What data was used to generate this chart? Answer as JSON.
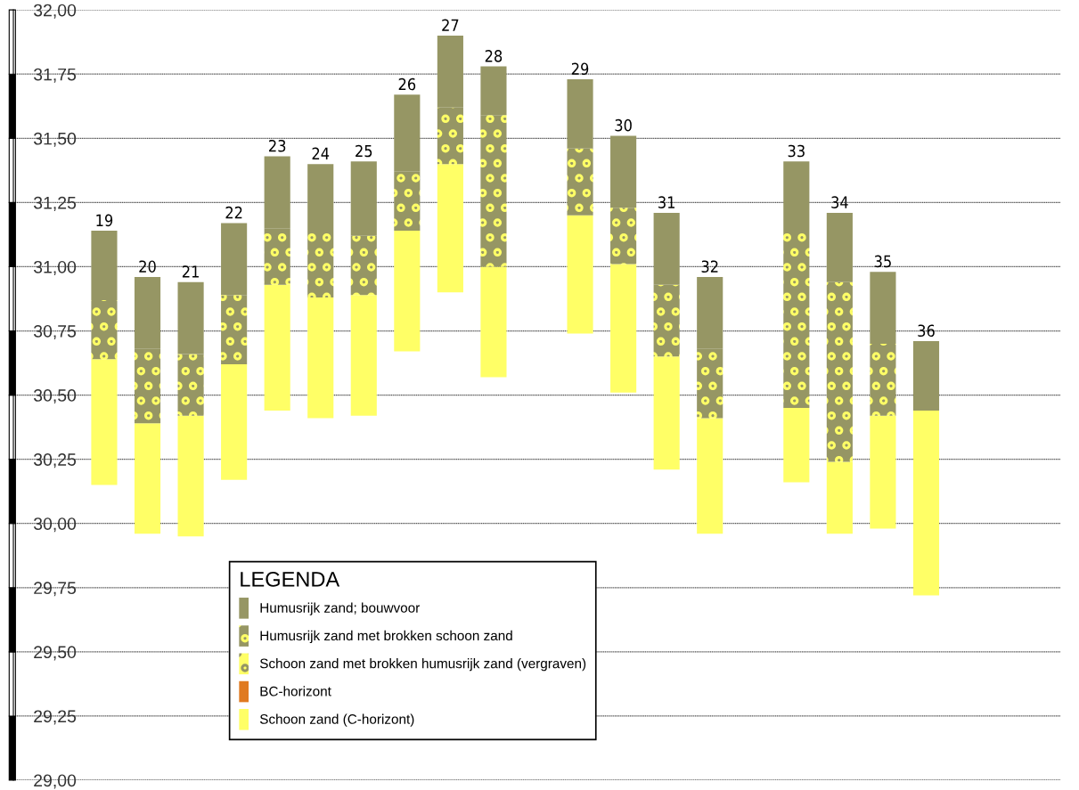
{
  "chart_data": {
    "type": "bar",
    "legend_title": "LEGENDA",
    "legend": "bottom left",
    "grid": "y",
    "categories": [
      "19",
      "20",
      "21",
      "22",
      "23",
      "24",
      "25",
      "26",
      "27",
      "28",
      null,
      "29",
      "30",
      "31",
      "32",
      null,
      "33",
      "34",
      "35",
      "36"
    ],
    "series": [
      {
        "name": "Schoon zand (C-horizont)",
        "color": "#ffff66",
        "base": [
          30.15,
          29.96,
          29.95,
          30.17,
          30.44,
          30.41,
          30.42,
          30.67,
          30.9,
          30.57,
          null,
          30.74,
          30.51,
          30.21,
          29.96,
          null,
          30.16,
          29.96,
          29.98,
          29.72
        ],
        "values": [
          0.49,
          0.43,
          0.47,
          0.45,
          0.49,
          0.47,
          0.47,
          0.47,
          0.5,
          0.43,
          null,
          0.46,
          0.5,
          0.44,
          0.45,
          null,
          0.29,
          0.28,
          0.44,
          0.72
        ]
      },
      {
        "name": "BC-horizont",
        "color": "#e07a20",
        "values": [
          null,
          null,
          null,
          null,
          null,
          null,
          null,
          null,
          null,
          null,
          null,
          null,
          null,
          null,
          null,
          null,
          null,
          null,
          null,
          null
        ]
      },
      {
        "name": "Schoon zand met brokken humusrijk zand (vergraven)",
        "color": "#ffff66",
        "values": [
          null,
          null,
          null,
          null,
          null,
          null,
          null,
          null,
          null,
          null,
          null,
          null,
          null,
          null,
          null,
          null,
          null,
          null,
          null,
          null
        ]
      },
      {
        "name": "Humusrijk zand met brokken schoon zand",
        "color": "#969664",
        "base": [
          30.64,
          30.39,
          30.42,
          30.62,
          30.93,
          30.88,
          30.89,
          31.14,
          31.4,
          31.0,
          null,
          31.2,
          31.01,
          30.65,
          30.41,
          null,
          30.45,
          30.24,
          30.42,
          null
        ],
        "values": [
          0.23,
          0.29,
          0.24,
          0.27,
          0.22,
          0.25,
          0.23,
          0.23,
          0.22,
          0.59,
          null,
          0.26,
          0.22,
          0.28,
          0.27,
          null,
          0.68,
          0.7,
          0.28,
          null
        ]
      },
      {
        "name": "Humusrijk zand; bouwvoor",
        "color": "#969664",
        "base": [
          30.87,
          30.68,
          30.66,
          30.89,
          31.15,
          31.13,
          31.12,
          31.37,
          31.62,
          31.59,
          null,
          31.46,
          31.23,
          30.93,
          30.68,
          null,
          31.13,
          30.94,
          30.7,
          30.44
        ],
        "values": [
          0.27,
          0.28,
          0.28,
          0.28,
          0.28,
          0.27,
          0.29,
          0.3,
          0.28,
          0.19,
          null,
          0.27,
          0.28,
          0.28,
          0.28,
          null,
          0.28,
          0.27,
          0.28,
          0.27
        ]
      }
    ],
    "ylim": [
      29.0,
      32.0
    ],
    "yticks": [
      {
        "value": 29.0,
        "label": "29,00"
      },
      {
        "value": 29.25,
        "label": "29,25"
      },
      {
        "value": 29.5,
        "label": "29,50"
      },
      {
        "value": 29.75,
        "label": "29,75"
      },
      {
        "value": 30.0,
        "label": "30,00"
      },
      {
        "value": 30.25,
        "label": "30,25"
      },
      {
        "value": 30.5,
        "label": "30,50"
      },
      {
        "value": 30.75,
        "label": "30,75"
      },
      {
        "value": 31.0,
        "label": "31,00"
      },
      {
        "value": 31.25,
        "label": "31,25"
      },
      {
        "value": 31.5,
        "label": "31,50"
      },
      {
        "value": 31.75,
        "label": "31,75"
      },
      {
        "value": 32.0,
        "label": "32,00"
      }
    ]
  }
}
